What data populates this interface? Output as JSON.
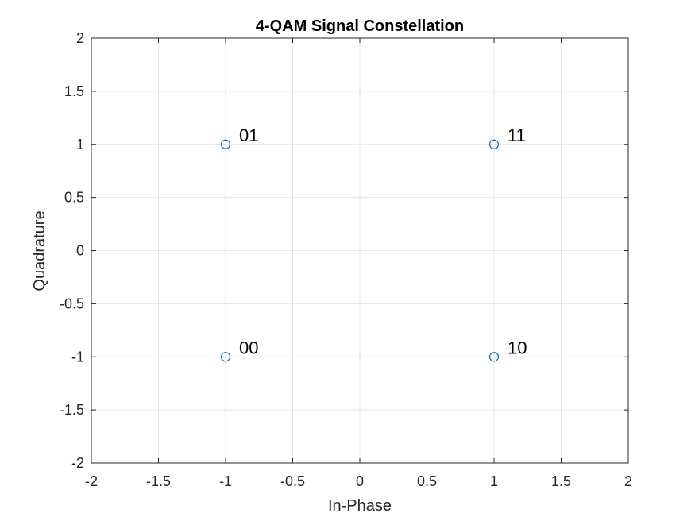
{
  "chart_data": {
    "type": "scatter",
    "title": "4-QAM Signal Constellation",
    "xlabel": "In-Phase",
    "ylabel": "Quadrature",
    "xlim": [
      -2,
      2
    ],
    "ylim": [
      -2,
      2
    ],
    "xticks": [
      -2,
      -1.5,
      -1,
      -0.5,
      0,
      0.5,
      1,
      1.5,
      2
    ],
    "yticks": [
      -2,
      -1.5,
      -1,
      -0.5,
      0,
      0.5,
      1,
      1.5,
      2
    ],
    "xtick_labels": [
      "-2",
      "-1.5",
      "-1",
      "-0.5",
      "0",
      "0.5",
      "1",
      "1.5",
      "2"
    ],
    "ytick_labels": [
      "-2",
      "-1.5",
      "-1",
      "-0.5",
      "0",
      "0.5",
      "1",
      "1.5",
      "2"
    ],
    "grid": true,
    "marker": "circle-open",
    "marker_color": "#0072BD",
    "points": [
      {
        "x": -1,
        "y": -1,
        "label": "00"
      },
      {
        "x": -1,
        "y": 1,
        "label": "01"
      },
      {
        "x": 1,
        "y": -1,
        "label": "10"
      },
      {
        "x": 1,
        "y": 1,
        "label": "11"
      }
    ]
  }
}
